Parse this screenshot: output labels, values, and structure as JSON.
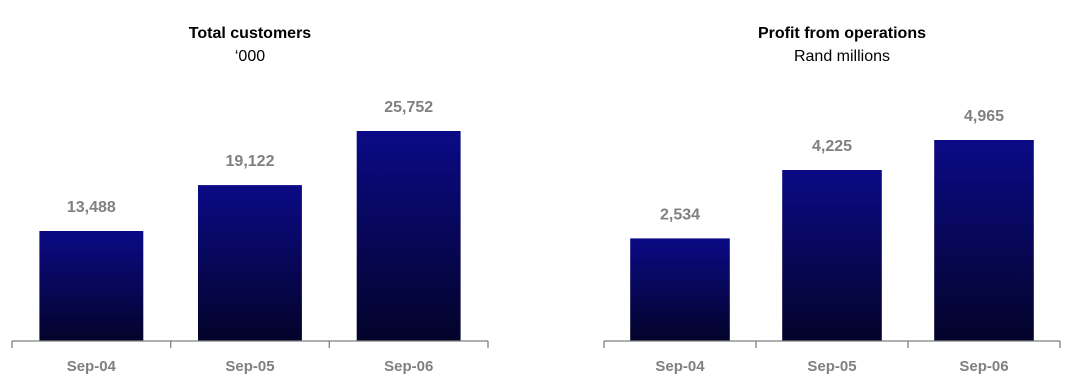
{
  "chart_data": [
    {
      "type": "bar",
      "title": "Total customers",
      "subtitle": "‘000",
      "categories": [
        "Sep-04",
        "Sep-05",
        "Sep-06"
      ],
      "values": [
        13488,
        19122,
        25752
      ],
      "value_labels": [
        "13,488",
        "19,122",
        "25,752"
      ],
      "ylim": [
        0,
        28000
      ],
      "grid": false,
      "legend": "none",
      "bar_color": "#0b0a86",
      "bar_color_bottom": "#03032a",
      "label_color": "#808080",
      "axis_color": "#808080"
    },
    {
      "type": "bar",
      "title": "Profit from operations",
      "subtitle": "Rand millions",
      "categories": [
        "Sep-04",
        "Sep-05",
        "Sep-06"
      ],
      "values": [
        2534,
        4225,
        4965
      ],
      "value_labels": [
        "2,534",
        "4,225",
        "4,965"
      ],
      "ylim": [
        0,
        5500
      ],
      "grid": false,
      "legend": "none",
      "bar_color": "#0b0a86",
      "bar_color_bottom": "#03032a",
      "label_color": "#808080",
      "axis_color": "#808080"
    }
  ]
}
